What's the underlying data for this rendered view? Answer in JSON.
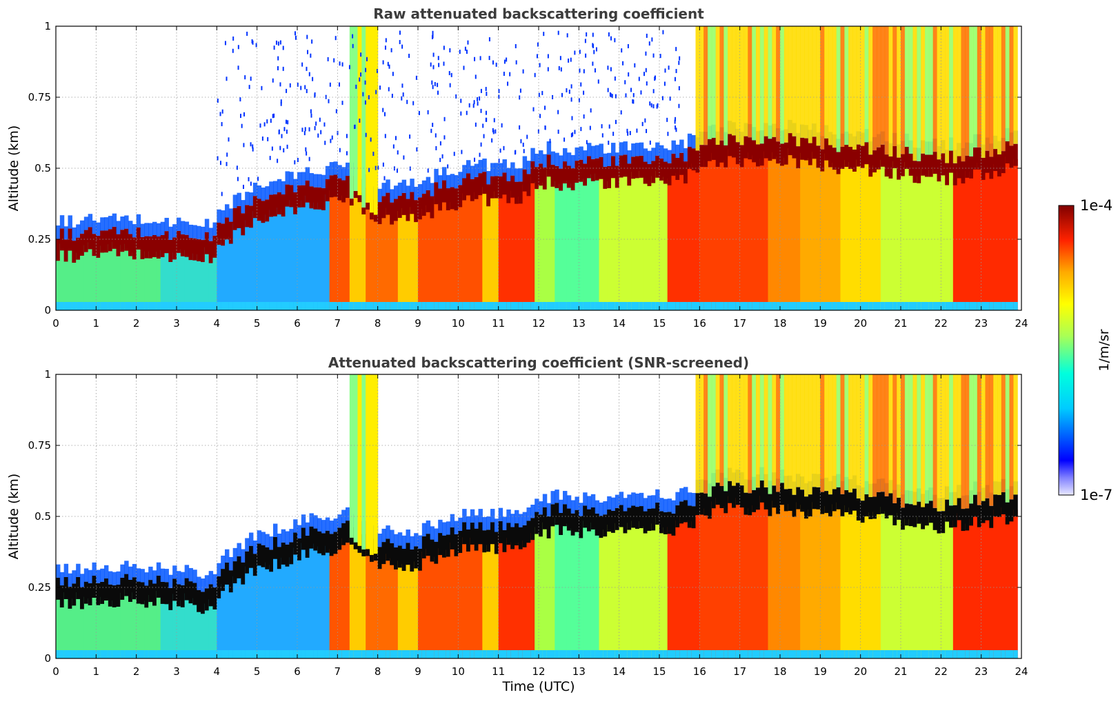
{
  "chart_data": [
    {
      "type": "heatmap",
      "title": "Raw attenuated backscattering coefficient",
      "xlabel": "",
      "ylabel": "Altitude (km)",
      "xlim": [
        0,
        24
      ],
      "ylim": [
        0,
        1
      ],
      "x_ticks": [
        "0",
        "1",
        "2",
        "3",
        "4",
        "5",
        "6",
        "7",
        "8",
        "9",
        "10",
        "11",
        "12",
        "13",
        "14",
        "15",
        "16",
        "17",
        "18",
        "19",
        "20",
        "21",
        "22",
        "23",
        "24"
      ],
      "y_ticks": [
        "0",
        "0.25",
        "0.5",
        "0.75",
        "1"
      ],
      "grid": true,
      "boundary_layer_top_km": [
        {
          "t": 0,
          "z": 0.21
        },
        {
          "t": 1,
          "z": 0.22
        },
        {
          "t": 2,
          "z": 0.22
        },
        {
          "t": 3,
          "z": 0.21
        },
        {
          "t": 3.8,
          "z": 0.2
        },
        {
          "t": 4.5,
          "z": 0.3
        },
        {
          "t": 5,
          "z": 0.33
        },
        {
          "t": 6,
          "z": 0.38
        },
        {
          "t": 6.8,
          "z": 0.4
        },
        {
          "t": 7.3,
          "z": 0.42
        },
        {
          "t": 8,
          "z": 0.35
        },
        {
          "t": 8.8,
          "z": 0.34
        },
        {
          "t": 9.5,
          "z": 0.38
        },
        {
          "t": 10.5,
          "z": 0.42
        },
        {
          "t": 11.5,
          "z": 0.4
        },
        {
          "t": 12,
          "z": 0.47
        },
        {
          "t": 13,
          "z": 0.47
        },
        {
          "t": 14,
          "z": 0.47
        },
        {
          "t": 15.5,
          "z": 0.48
        },
        {
          "t": 16.5,
          "z": 0.55
        },
        {
          "t": 18,
          "z": 0.55
        },
        {
          "t": 20,
          "z": 0.52
        },
        {
          "t": 22,
          "z": 0.48
        },
        {
          "t": 23.8,
          "z": 0.52
        }
      ]
    },
    {
      "type": "heatmap",
      "title": "Attenuated backscattering coefficient (SNR-screened)",
      "xlabel": "Time (UTC)",
      "ylabel": "Altitude (km)",
      "xlim": [
        0,
        24
      ],
      "ylim": [
        0,
        1
      ],
      "x_ticks": [
        "0",
        "1",
        "2",
        "3",
        "4",
        "5",
        "6",
        "7",
        "8",
        "9",
        "10",
        "11",
        "12",
        "13",
        "14",
        "15",
        "16",
        "17",
        "18",
        "19",
        "20",
        "21",
        "22",
        "23",
        "24"
      ],
      "y_ticks": [
        "0",
        "0.25",
        "0.5",
        "0.75",
        "1"
      ],
      "grid": true
    }
  ],
  "colorbar": {
    "label": "1/m/sr",
    "max_label": "1e-4",
    "min_label": "1e-7",
    "colormap": "jet",
    "colors": [
      "#e8e8ff",
      "#0000ff",
      "#00ffff",
      "#80ff80",
      "#ffff00",
      "#ff8000",
      "#ff0000",
      "#800000"
    ]
  }
}
